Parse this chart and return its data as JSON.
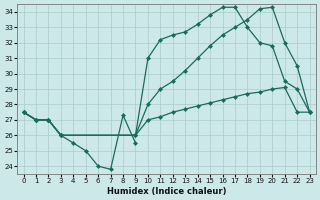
{
  "xlabel": "Humidex (Indice chaleur)",
  "background_color": "#cce8e8",
  "grid_color": "#aacccc",
  "line_color": "#1a6b5a",
  "xlim": [
    -0.5,
    23.5
  ],
  "ylim": [
    23.5,
    34.5
  ],
  "yticks": [
    24,
    25,
    26,
    27,
    28,
    29,
    30,
    31,
    32,
    33,
    34
  ],
  "xticks": [
    0,
    1,
    2,
    3,
    4,
    5,
    6,
    7,
    8,
    9,
    10,
    11,
    12,
    13,
    14,
    15,
    16,
    17,
    18,
    19,
    20,
    21,
    22,
    23
  ],
  "line_dip_x": [
    0,
    1,
    2,
    3,
    4,
    5,
    6,
    7,
    8,
    9
  ],
  "line_dip_y": [
    27.5,
    27.0,
    27.0,
    26.0,
    25.5,
    25.0,
    24.0,
    23.8,
    27.3,
    25.5
  ],
  "line_peak_x": [
    0,
    1,
    2,
    3,
    9,
    10,
    11,
    12,
    13,
    14,
    15,
    16,
    17,
    18,
    19,
    20,
    21,
    22,
    23
  ],
  "line_peak_y": [
    27.5,
    27.0,
    27.0,
    26.0,
    26.0,
    31.0,
    32.2,
    32.5,
    32.7,
    33.2,
    33.8,
    34.3,
    34.3,
    33.0,
    32.0,
    31.8,
    29.5,
    29.0,
    27.5
  ],
  "line_mid_x": [
    0,
    1,
    2,
    3,
    9,
    10,
    11,
    12,
    13,
    14,
    15,
    16,
    17,
    18,
    19,
    20,
    21,
    22,
    23
  ],
  "line_mid_y": [
    27.5,
    27.0,
    27.0,
    26.0,
    26.0,
    28.0,
    29.0,
    29.5,
    30.2,
    31.0,
    31.8,
    32.5,
    33.0,
    33.5,
    34.2,
    34.3,
    32.0,
    30.5,
    27.5
  ],
  "line_low_x": [
    0,
    1,
    2,
    3,
    9,
    10,
    11,
    12,
    13,
    14,
    15,
    16,
    17,
    18,
    19,
    20,
    21,
    22,
    23
  ],
  "line_low_y": [
    27.5,
    27.0,
    27.0,
    26.0,
    26.0,
    27.0,
    27.2,
    27.5,
    27.7,
    27.9,
    28.1,
    28.3,
    28.5,
    28.7,
    28.8,
    29.0,
    29.1,
    27.5,
    27.5
  ]
}
